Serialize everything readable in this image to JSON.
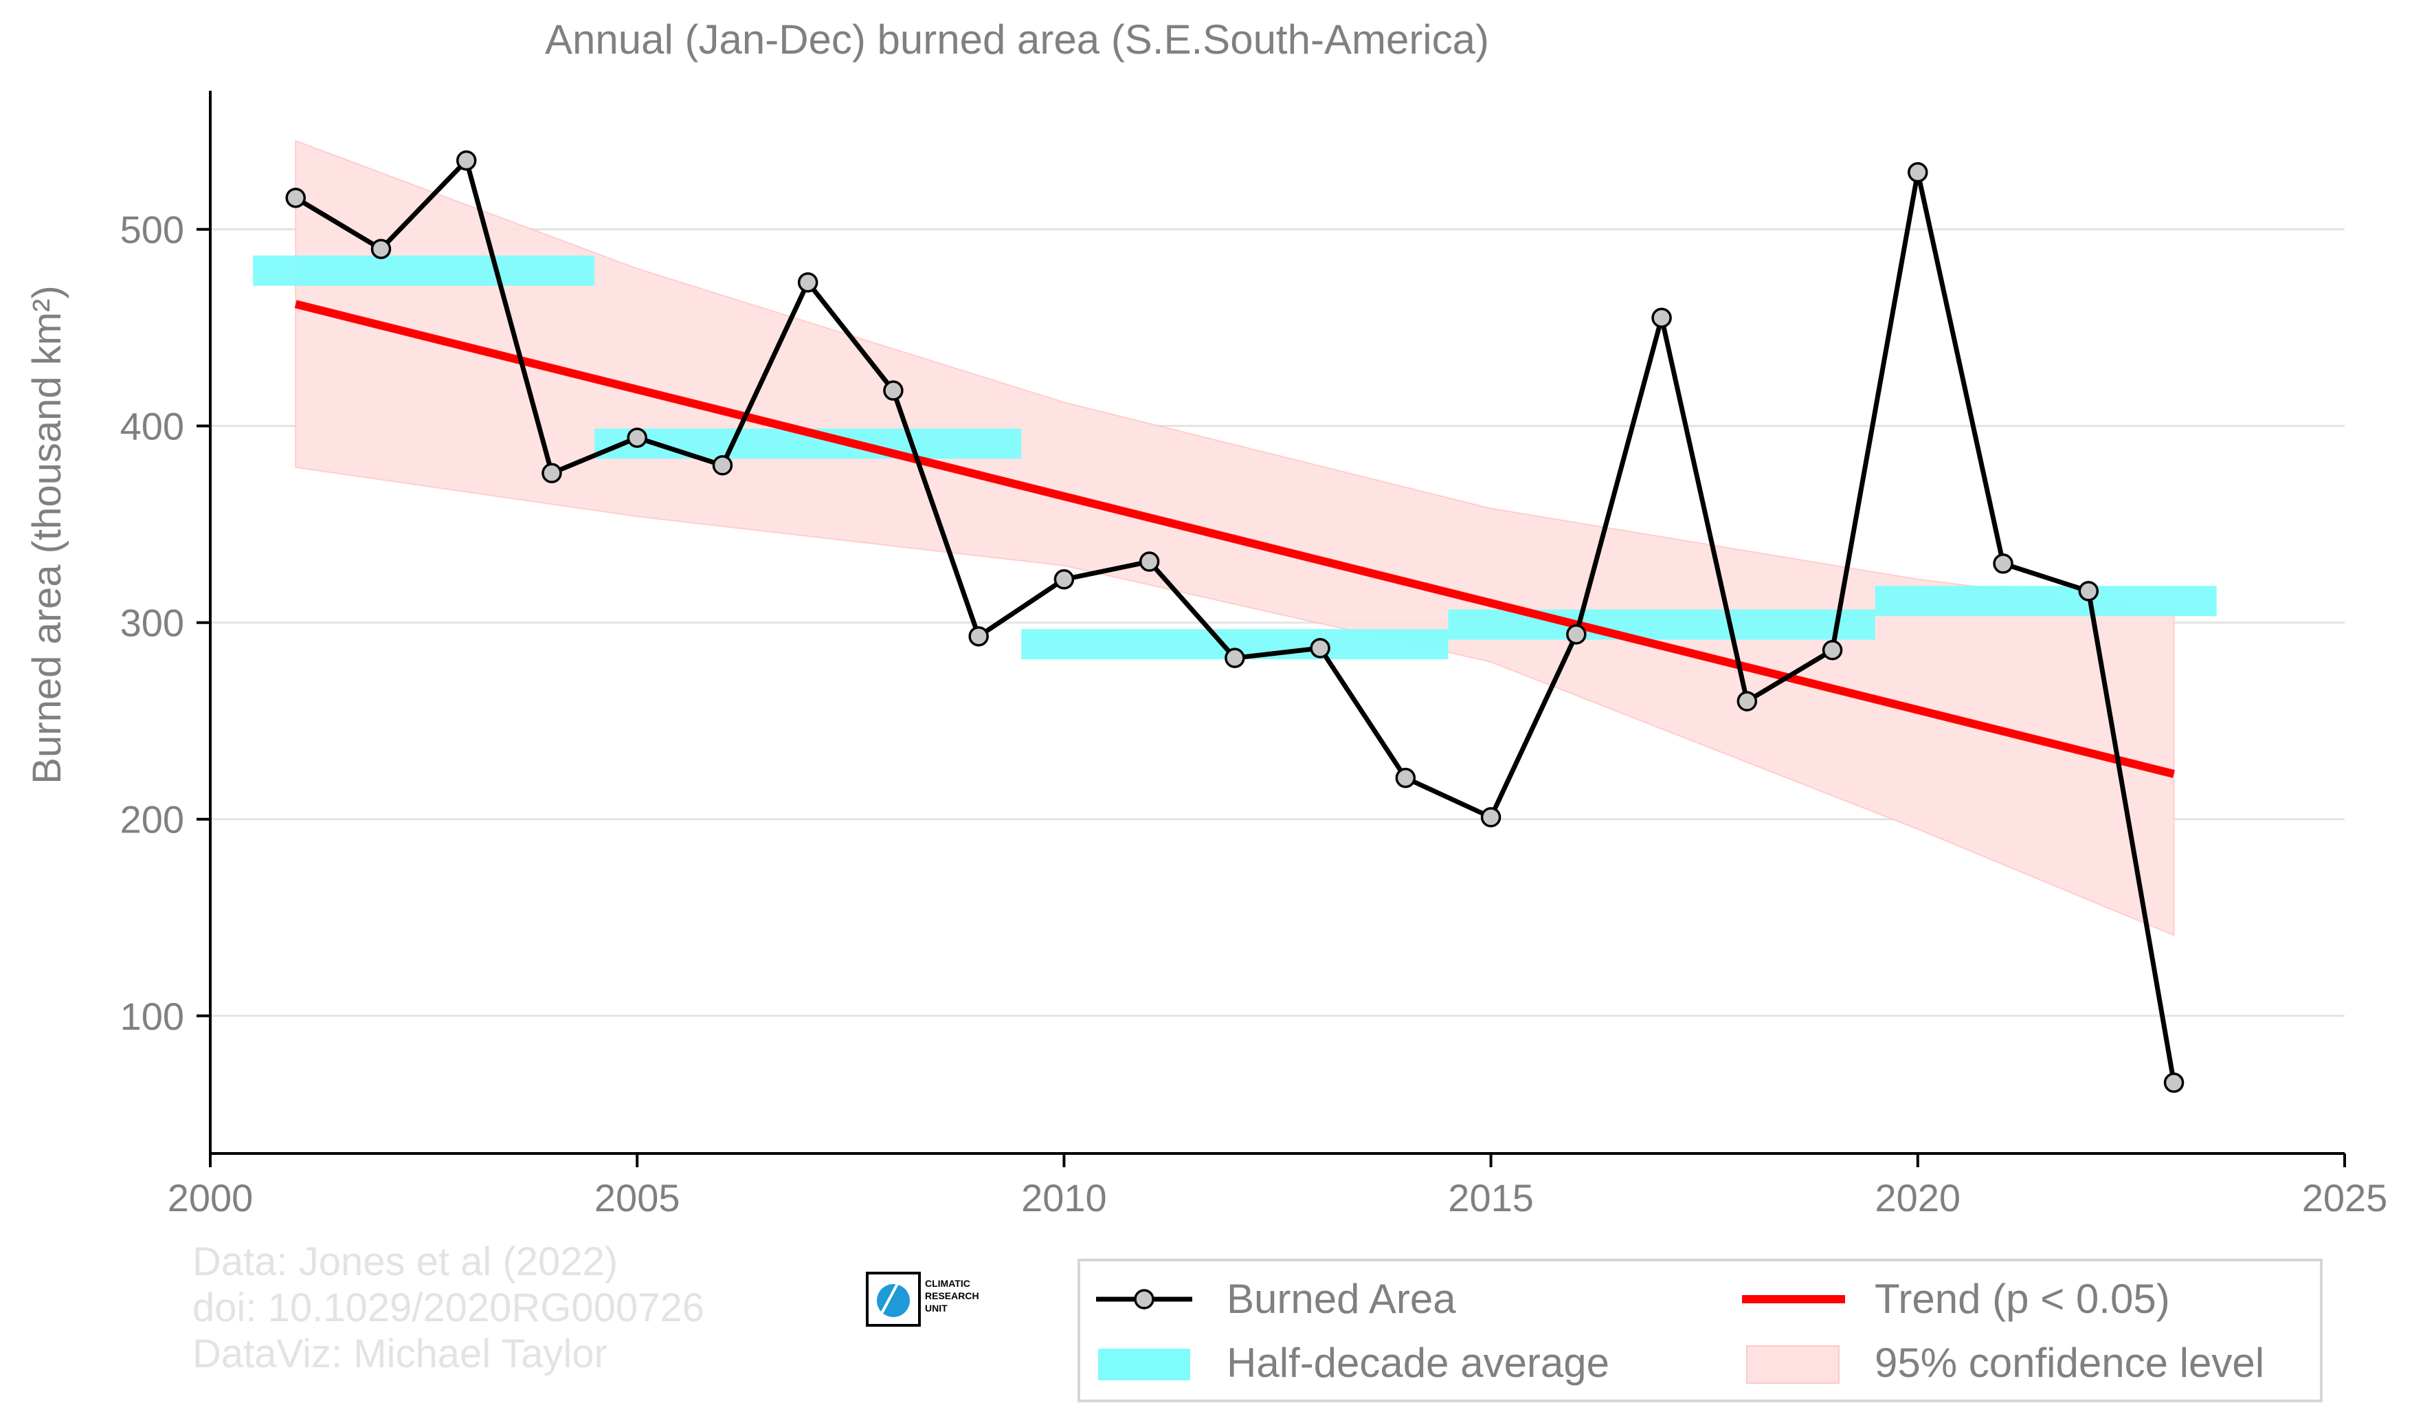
{
  "chart_data": {
    "type": "line",
    "title": "Annual (Jan-Dec) burned area (S.E.South-America)",
    "ylabel": "Burned area (thousand km²)",
    "xlabel": "",
    "xlim": [
      2000,
      2025
    ],
    "ylim": [
      30,
      560
    ],
    "xticks": [
      2000,
      2005,
      2010,
      2015,
      2020,
      2025
    ],
    "yticks": [
      100,
      200,
      300,
      400,
      500
    ],
    "grid": "horizontal",
    "series": [
      {
        "name": "Burned Area",
        "color": "#000000",
        "marker_color": "#c8c8c8",
        "x": [
          2001,
          2002,
          2003,
          2004,
          2005,
          2006,
          2007,
          2008,
          2009,
          2010,
          2011,
          2012,
          2013,
          2014,
          2015,
          2016,
          2017,
          2018,
          2019,
          2020,
          2021,
          2022,
          2023
        ],
        "y": [
          516,
          490,
          535,
          376,
          394,
          380,
          473,
          418,
          293,
          322,
          331,
          282,
          287,
          221,
          201,
          294,
          455,
          260,
          286,
          529,
          330,
          316,
          66
        ]
      }
    ],
    "half_decade_average": {
      "name": "Half-decade average",
      "color": "#7ffcfc",
      "segments": [
        {
          "x0": 2000.5,
          "x1": 2004.5,
          "y": 479
        },
        {
          "x0": 2004.5,
          "x1": 2009.5,
          "y": 391
        },
        {
          "x0": 2009.5,
          "x1": 2014.5,
          "y": 289
        },
        {
          "x0": 2014.5,
          "x1": 2019.5,
          "y": 299
        },
        {
          "x0": 2019.5,
          "x1": 2023.5,
          "y": 311
        }
      ]
    },
    "trend": {
      "name": "Trend (p < 0.05)",
      "color": "#ff0000",
      "x": [
        2001,
        2023
      ],
      "y": [
        462,
        223
      ]
    },
    "confidence_band": {
      "name": "95% confidence level",
      "color": "#ffe1e1",
      "x": [
        2001,
        2005,
        2010,
        2015,
        2020,
        2023
      ],
      "upper": [
        545,
        480,
        412,
        358,
        322,
        306
      ],
      "lower": [
        379,
        354,
        329,
        280,
        195,
        141
      ]
    },
    "legend": {
      "placement": "bottom-right",
      "entries": [
        "Burned Area",
        "Trend (p < 0.05)",
        "Half-decade average",
        "95% confidence level"
      ]
    },
    "credits": [
      "Data: Jones et al (2022)",
      "doi: 10.1029/2020RG000726",
      "DataViz: Michael Taylor"
    ],
    "logo_text": [
      "CLIMATIC",
      "RESEARCH",
      "UNIT"
    ]
  }
}
